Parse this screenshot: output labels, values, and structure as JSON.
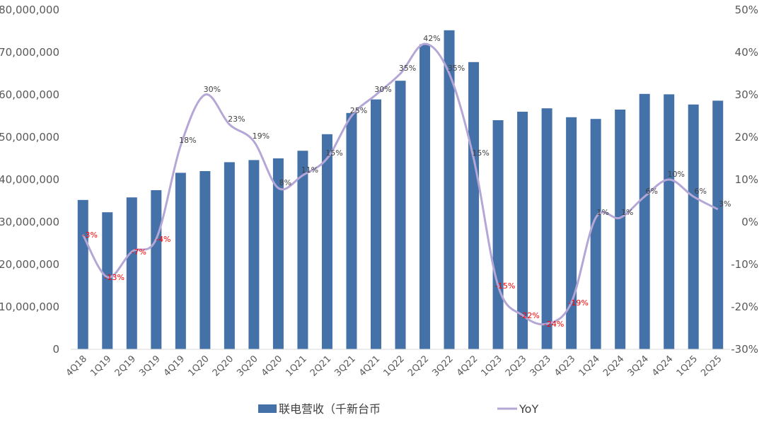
{
  "chart_data": {
    "type": "bar",
    "categories": [
      "4Q18",
      "1Q19",
      "2Q19",
      "3Q19",
      "4Q19",
      "1Q20",
      "2Q20",
      "3Q20",
      "4Q20",
      "1Q21",
      "2Q21",
      "3Q21",
      "4Q21",
      "1Q22",
      "2Q22",
      "3Q22",
      "4Q22",
      "1Q23",
      "2Q23",
      "3Q23",
      "4Q23",
      "1Q24",
      "2Q24",
      "3Q24",
      "4Q24",
      "1Q25",
      "2Q25"
    ],
    "series": [
      {
        "name": "联电营收（千新台币",
        "type": "bar",
        "axis": "left",
        "color": "#4472A8",
        "values": [
          35200000,
          32300000,
          35800000,
          37500000,
          41600000,
          42000000,
          44100000,
          44600000,
          45000000,
          46800000,
          50700000,
          55700000,
          58900000,
          63300000,
          71900000,
          75200000,
          67700000,
          54000000,
          56000000,
          56800000,
          54700000,
          54300000,
          56500000,
          60200000,
          60100000,
          57700000,
          58600000
        ]
      },
      {
        "name": "YoY",
        "type": "line",
        "axis": "right",
        "color": "#B4A7D6",
        "values": [
          -3,
          -13,
          -7,
          -4,
          18,
          30,
          23,
          19,
          8,
          11,
          15,
          25,
          30,
          35,
          42,
          35,
          15,
          -15,
          -22,
          -24,
          -19,
          1,
          1,
          6,
          10,
          6,
          3
        ],
        "labels": [
          "-3%",
          "-13%",
          "-7%",
          "-4%",
          "18%",
          "30%",
          "23%",
          "19%",
          "8%",
          "11%",
          "15%",
          "25%",
          "30%",
          "35%",
          "42%",
          "35%",
          "15%",
          "-15%",
          "-22%",
          "-24%",
          "-19%",
          "1%",
          "1%",
          "6%",
          "10%",
          "6%",
          "3%"
        ]
      }
    ],
    "y_left": {
      "min": 0,
      "max": 80000000,
      "ticks": [
        "0",
        "10,000,000",
        "20,000,000",
        "30,000,000",
        "40,000,000",
        "50,000,000",
        "60,000,000",
        "70,000,000",
        "80,000,000"
      ]
    },
    "y_right": {
      "min": -30,
      "max": 50,
      "ticks": [
        "-30%",
        "-20%",
        "-10%",
        "0%",
        "10%",
        "20%",
        "30%",
        "40%",
        "50%"
      ]
    },
    "negative_label_color": "#FF0000",
    "positive_label_color": "#404040",
    "legend": {
      "position": "bottom",
      "items": [
        {
          "label": "联电营收（千新台币",
          "swatch": "bar-swatch-icon"
        },
        {
          "label": "YoY",
          "swatch": "line-swatch-icon"
        }
      ]
    },
    "grid": false
  }
}
